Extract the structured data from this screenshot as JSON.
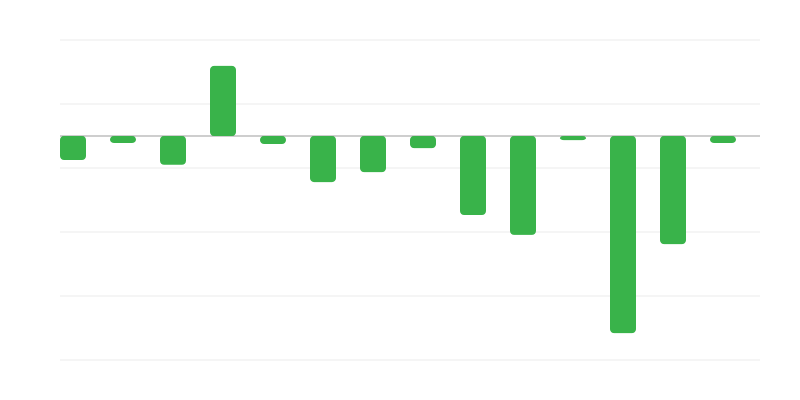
{
  "chart_data": {
    "type": "bar",
    "categories": [
      null,
      null,
      null,
      null,
      null,
      null,
      null,
      null,
      null,
      null,
      null,
      null,
      null,
      null
    ],
    "values": [
      -0.75,
      -0.22,
      -0.9,
      2.19,
      -0.25,
      -1.44,
      -1.13,
      -0.38,
      -2.47,
      -3.09,
      -0.13,
      -6.16,
      -3.38,
      -0.22
    ],
    "color": "#39b34a",
    "ylim": [
      -7,
      3
    ],
    "yticks": [
      -7,
      -5,
      -3,
      -1,
      1,
      3
    ],
    "grid": true
  }
}
